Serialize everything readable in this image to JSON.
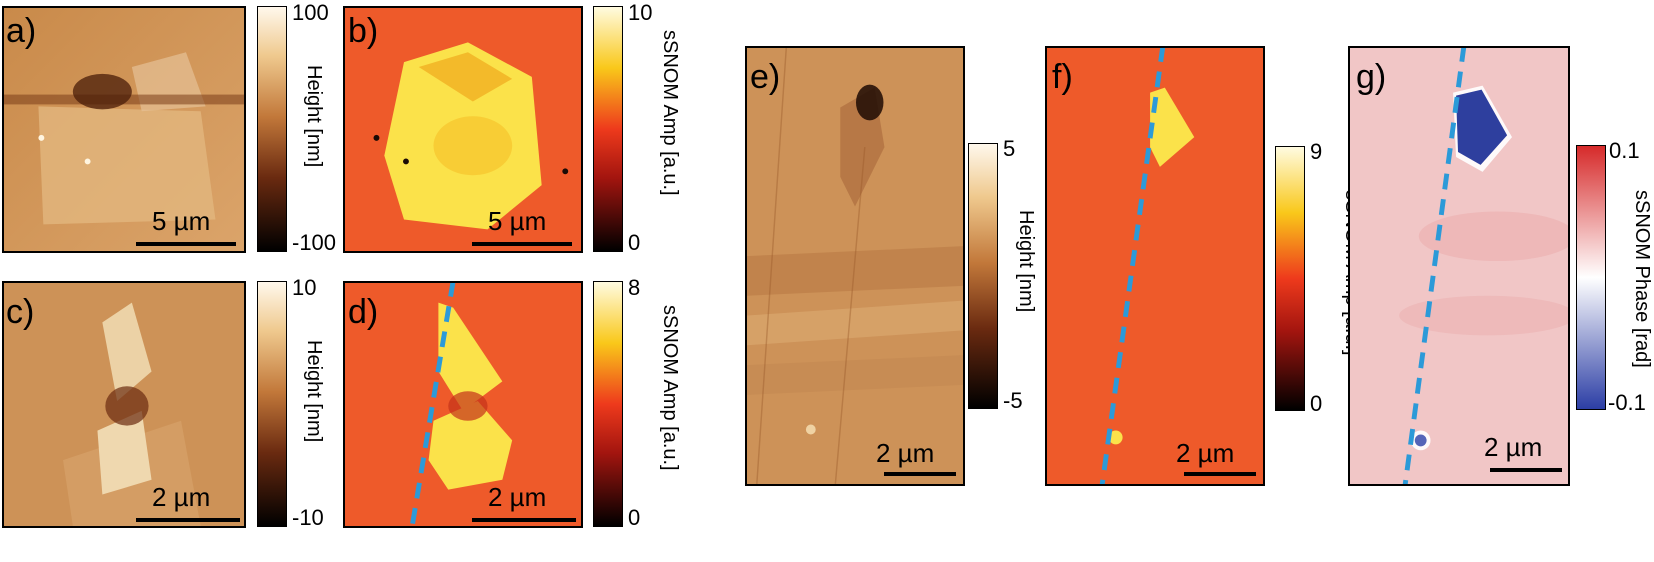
{
  "panels": {
    "a": {
      "label": "a)",
      "scalebar": "5 µm"
    },
    "b": {
      "label": "b)",
      "scalebar": "5 µm"
    },
    "c": {
      "label": "c)",
      "scalebar": "2 µm"
    },
    "d": {
      "label": "d)",
      "scalebar": "2 µm"
    },
    "e": {
      "label": "e)",
      "scalebar": "2 µm"
    },
    "f": {
      "label": "f)",
      "scalebar": "2 µm"
    },
    "g": {
      "label": "g)",
      "scalebar": "2 µm"
    }
  },
  "colorbars": {
    "a": {
      "max": "100",
      "min": "-100",
      "title": "Height [nm]"
    },
    "b": {
      "max": "10",
      "min": "0",
      "title": "sSNOM Amp [a.u.]"
    },
    "c": {
      "max": "10",
      "min": "-10",
      "title": "Height [nm]"
    },
    "d": {
      "max": "8",
      "min": "0",
      "title": "sSNOM Amp [a.u.]"
    },
    "e": {
      "max": "5",
      "min": "-5",
      "title": "Height [nm]"
    },
    "f": {
      "max": "9",
      "min": "0",
      "title": "sSNOM Amp [a.u.]"
    },
    "g": {
      "max": "0.1",
      "min": "-0.1",
      "title": "sSNOM Phase [rad]"
    }
  },
  "colors": {
    "height_low": "#000000",
    "height_mid": "#b0622b",
    "height_high": "#fff8ec",
    "amp_low": "#000000",
    "amp_mid": "#e8361a",
    "amp_high": "#fff8a0",
    "phase_low": "#2c3ea5",
    "phase_mid": "#ffffff",
    "phase_high": "#d62a2a",
    "dashed_line": "#2c9ad8"
  }
}
